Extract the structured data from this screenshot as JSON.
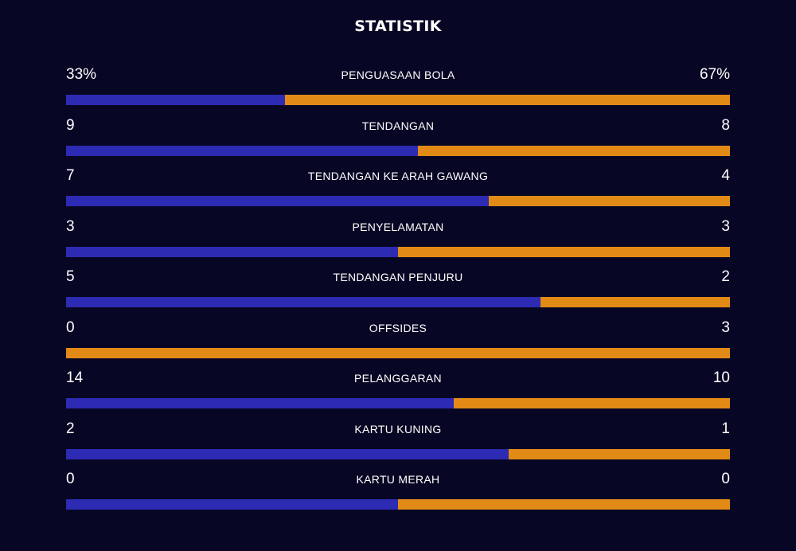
{
  "title": "STATISTIK",
  "colors": {
    "background": "#070725",
    "home": "#2d2ab3",
    "away": "#e28a16"
  },
  "stats": [
    {
      "label": "PENGUASAAN BOLA",
      "home": "33%",
      "away": "67%",
      "home_value": 33,
      "away_value": 67
    },
    {
      "label": "TENDANGAN",
      "home": "9",
      "away": "8",
      "home_value": 9,
      "away_value": 8
    },
    {
      "label": "TENDANGAN KE ARAH GAWANG",
      "home": "7",
      "away": "4",
      "home_value": 7,
      "away_value": 4
    },
    {
      "label": "PENYELAMATAN",
      "home": "3",
      "away": "3",
      "home_value": 3,
      "away_value": 3
    },
    {
      "label": "TENDANGAN PENJURU",
      "home": "5",
      "away": "2",
      "home_value": 5,
      "away_value": 2
    },
    {
      "label": "OFFSIDES",
      "home": "0",
      "away": "3",
      "home_value": 0,
      "away_value": 3
    },
    {
      "label": "PELANGGARAN",
      "home": "14",
      "away": "10",
      "home_value": 14,
      "away_value": 10
    },
    {
      "label": "KARTU KUNING",
      "home": "2",
      "away": "1",
      "home_value": 2,
      "away_value": 1
    },
    {
      "label": "KARTU MERAH",
      "home": "0",
      "away": "0",
      "home_value": 0,
      "away_value": 0
    }
  ]
}
